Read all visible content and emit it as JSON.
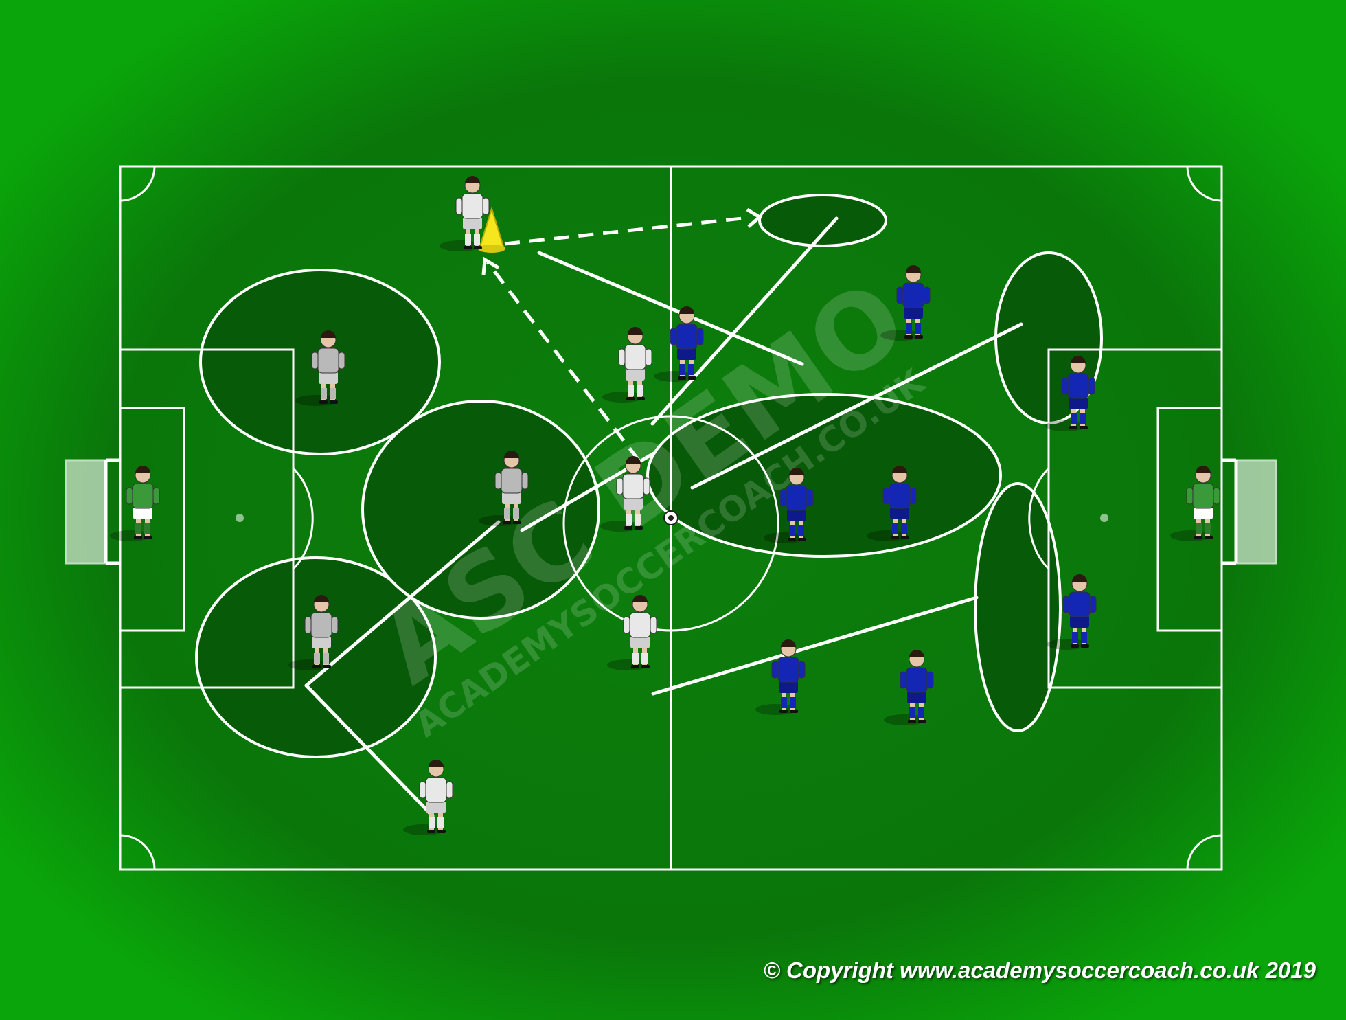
{
  "watermark": {
    "main": "ASC DEMO",
    "sub": "ACADEMYSOCCERCOACH.CO.UK"
  },
  "copyright": "© Copyright www.academysoccercoach.co.uk 2019",
  "colors": {
    "grass": "#0b7a0b",
    "zone": "#075807",
    "lines": "#ffffff",
    "team_white": "#e8e8e8",
    "team_grey": "#b9b9b9",
    "team_blue": "#1426b4",
    "goalkeeper": "#3a9a3a",
    "cone": "#f5e61e"
  },
  "elements": {
    "cone": "yellow-cone",
    "ball": "soccer-ball"
  }
}
